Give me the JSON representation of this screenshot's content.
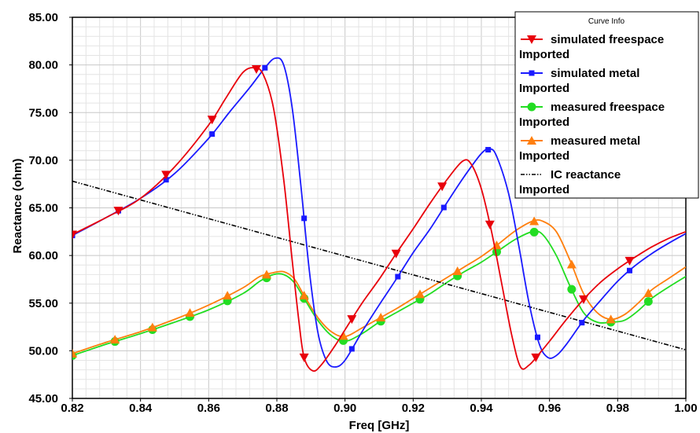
{
  "chart_data": {
    "type": "line",
    "xlabel": "Freq [GHz]",
    "ylabel": "Reactance (ohm)",
    "xlim": [
      0.82,
      1.0
    ],
    "ylim": [
      45.0,
      85.0
    ],
    "x_ticks": [
      "0.82",
      "0.84",
      "0.86",
      "0.88",
      "0.90",
      "0.92",
      "0.94",
      "0.96",
      "0.98",
      "1.00"
    ],
    "y_ticks": [
      "45.00",
      "50.00",
      "55.00",
      "60.00",
      "65.00",
      "70.00",
      "75.00",
      "80.00",
      "85.00"
    ],
    "grid": true,
    "legend": {
      "title": "Curve Info",
      "placement": "top-right",
      "entries": [
        {
          "name": "simulated freespace",
          "source": "Imported"
        },
        {
          "name": "simulated metal",
          "source": "Imported"
        },
        {
          "name": "measured freespace",
          "source": "Imported"
        },
        {
          "name": "measured metal",
          "source": "Imported"
        },
        {
          "name": "IC reactance",
          "source": "Imported"
        }
      ]
    },
    "series": [
      {
        "name": "simulated freespace",
        "color": "#e8000b",
        "marker": "triangle-down",
        "points": [
          [
            0.82,
            62.2
          ],
          [
            0.83,
            64.0
          ],
          [
            0.84,
            66.0
          ],
          [
            0.85,
            69.3
          ],
          [
            0.86,
            73.7
          ],
          [
            0.865,
            76.5
          ],
          [
            0.87,
            79.2
          ],
          [
            0.8735,
            79.7
          ],
          [
            0.876,
            79.0
          ],
          [
            0.879,
            75.5
          ],
          [
            0.882,
            68.0
          ],
          [
            0.8845,
            59.5
          ],
          [
            0.8865,
            53.0
          ],
          [
            0.888,
            49.3
          ],
          [
            0.8905,
            47.9
          ],
          [
            0.893,
            48.5
          ],
          [
            0.897,
            50.5
          ],
          [
            0.9,
            52.2
          ],
          [
            0.905,
            55.0
          ],
          [
            0.91,
            57.5
          ],
          [
            0.915,
            60.2
          ],
          [
            0.92,
            62.8
          ],
          [
            0.925,
            65.5
          ],
          [
            0.93,
            68.0
          ],
          [
            0.9345,
            69.9
          ],
          [
            0.937,
            69.6
          ],
          [
            0.94,
            67.0
          ],
          [
            0.943,
            62.5
          ],
          [
            0.946,
            57.0
          ],
          [
            0.949,
            51.5
          ],
          [
            0.9515,
            48.3
          ],
          [
            0.954,
            48.5
          ],
          [
            0.957,
            49.7
          ],
          [
            0.96,
            51.0
          ],
          [
            0.965,
            53.3
          ],
          [
            0.97,
            55.4
          ],
          [
            0.975,
            57.2
          ],
          [
            0.98,
            58.6
          ],
          [
            0.985,
            59.8
          ],
          [
            0.99,
            60.9
          ],
          [
            0.995,
            61.8
          ],
          [
            1.0,
            62.5
          ]
        ],
        "markers_x": [
          0.82,
          0.8335,
          0.8475,
          0.861,
          0.874,
          0.888,
          0.902,
          0.915,
          0.9285,
          0.9425,
          0.956,
          0.97,
          0.9835
        ]
      },
      {
        "name": "simulated metal",
        "color": "#1a1aff",
        "marker": "square",
        "points": [
          [
            0.82,
            62.1
          ],
          [
            0.83,
            64.0
          ],
          [
            0.84,
            66.0
          ],
          [
            0.85,
            68.6
          ],
          [
            0.86,
            72.3
          ],
          [
            0.866,
            75.0
          ],
          [
            0.872,
            77.6
          ],
          [
            0.8765,
            79.7
          ],
          [
            0.8795,
            80.7
          ],
          [
            0.882,
            80.0
          ],
          [
            0.8845,
            75.5
          ],
          [
            0.887,
            67.5
          ],
          [
            0.8895,
            58.5
          ],
          [
            0.892,
            52.0
          ],
          [
            0.8945,
            49.0
          ],
          [
            0.897,
            48.3
          ],
          [
            0.9,
            49.0
          ],
          [
            0.905,
            52.0
          ],
          [
            0.91,
            54.8
          ],
          [
            0.915,
            57.5
          ],
          [
            0.92,
            60.3
          ],
          [
            0.925,
            62.8
          ],
          [
            0.93,
            65.6
          ],
          [
            0.935,
            68.3
          ],
          [
            0.94,
            70.7
          ],
          [
            0.9425,
            71.2
          ],
          [
            0.9445,
            70.4
          ],
          [
            0.948,
            66.5
          ],
          [
            0.951,
            61.0
          ],
          [
            0.954,
            55.0
          ],
          [
            0.957,
            50.7
          ],
          [
            0.9595,
            49.3
          ],
          [
            0.962,
            49.5
          ],
          [
            0.965,
            50.7
          ],
          [
            0.97,
            53.2
          ],
          [
            0.975,
            55.3
          ],
          [
            0.98,
            57.3
          ],
          [
            0.985,
            58.9
          ],
          [
            0.99,
            60.2
          ],
          [
            0.995,
            61.3
          ],
          [
            1.0,
            62.3
          ]
        ],
        "markers_x": [
          0.82,
          0.8335,
          0.8475,
          0.861,
          0.8765,
          0.888,
          0.902,
          0.9155,
          0.929,
          0.942,
          0.9565,
          0.9695,
          0.9835
        ]
      },
      {
        "name": "measured freespace",
        "color": "#22dd22",
        "marker": "circle",
        "points": [
          [
            0.82,
            49.5
          ],
          [
            0.83,
            50.7
          ],
          [
            0.84,
            51.8
          ],
          [
            0.85,
            53.0
          ],
          [
            0.86,
            54.3
          ],
          [
            0.87,
            56.0
          ],
          [
            0.875,
            57.3
          ],
          [
            0.879,
            58.0
          ],
          [
            0.882,
            58.0
          ],
          [
            0.885,
            57.2
          ],
          [
            0.888,
            55.5
          ],
          [
            0.892,
            53.2
          ],
          [
            0.896,
            51.6
          ],
          [
            0.9,
            51.0
          ],
          [
            0.905,
            51.8
          ],
          [
            0.91,
            53.0
          ],
          [
            0.915,
            54.0
          ],
          [
            0.92,
            55.0
          ],
          [
            0.925,
            56.0
          ],
          [
            0.93,
            57.2
          ],
          [
            0.935,
            58.3
          ],
          [
            0.94,
            59.3
          ],
          [
            0.945,
            60.5
          ],
          [
            0.95,
            61.7
          ],
          [
            0.955,
            62.5
          ],
          [
            0.958,
            62.2
          ],
          [
            0.962,
            60.0
          ],
          [
            0.966,
            56.8
          ],
          [
            0.97,
            54.0
          ],
          [
            0.974,
            53.0
          ],
          [
            0.978,
            53.0
          ],
          [
            0.982,
            53.2
          ],
          [
            0.986,
            54.2
          ],
          [
            0.99,
            55.5
          ],
          [
            0.995,
            56.7
          ],
          [
            1.0,
            57.8
          ]
        ],
        "markers_x": [
          0.82,
          0.8325,
          0.8435,
          0.8545,
          0.8655,
          0.877,
          0.888,
          0.8995,
          0.9105,
          0.922,
          0.933,
          0.9445,
          0.9555,
          0.9665,
          0.978,
          0.989
        ]
      },
      {
        "name": "measured metal",
        "color": "#ff7f0e",
        "marker": "triangle-up",
        "points": [
          [
            0.82,
            49.7
          ],
          [
            0.83,
            50.9
          ],
          [
            0.84,
            52.0
          ],
          [
            0.85,
            53.3
          ],
          [
            0.86,
            54.8
          ],
          [
            0.87,
            56.6
          ],
          [
            0.875,
            57.8
          ],
          [
            0.879,
            58.2
          ],
          [
            0.882,
            58.3
          ],
          [
            0.885,
            57.6
          ],
          [
            0.888,
            55.8
          ],
          [
            0.892,
            53.5
          ],
          [
            0.896,
            52.0
          ],
          [
            0.9,
            51.5
          ],
          [
            0.905,
            52.4
          ],
          [
            0.91,
            53.4
          ],
          [
            0.915,
            54.4
          ],
          [
            0.92,
            55.5
          ],
          [
            0.925,
            56.6
          ],
          [
            0.93,
            57.7
          ],
          [
            0.935,
            58.8
          ],
          [
            0.94,
            59.9
          ],
          [
            0.945,
            61.2
          ],
          [
            0.95,
            62.6
          ],
          [
            0.955,
            63.6
          ],
          [
            0.958,
            63.6
          ],
          [
            0.962,
            62.5
          ],
          [
            0.966,
            59.5
          ],
          [
            0.97,
            56.0
          ],
          [
            0.974,
            54.0
          ],
          [
            0.978,
            53.3
          ],
          [
            0.982,
            53.8
          ],
          [
            0.986,
            55.0
          ],
          [
            0.99,
            56.4
          ],
          [
            0.995,
            57.6
          ],
          [
            1.0,
            58.8
          ]
        ],
        "markers_x": [
          0.82,
          0.8325,
          0.8435,
          0.8545,
          0.8655,
          0.877,
          0.888,
          0.8995,
          0.9105,
          0.922,
          0.933,
          0.9445,
          0.9555,
          0.9665,
          0.978,
          0.989
        ]
      },
      {
        "name": "IC reactance",
        "color": "#000000",
        "marker": "none",
        "line_style": "dash-dot-dot",
        "points": [
          [
            0.82,
            67.8
          ],
          [
            1.0,
            50.1
          ]
        ]
      }
    ]
  }
}
